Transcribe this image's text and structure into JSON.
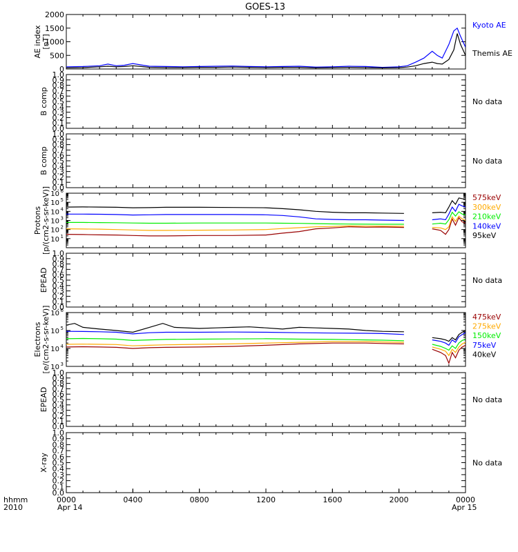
{
  "title": "GOES-13",
  "x_axis": {
    "corner_label_top": "hhmm",
    "corner_label_bottom": "2010",
    "ticks": [
      "0000",
      "0400",
      "0800",
      "1200",
      "1600",
      "2000",
      "0000"
    ],
    "tick_hours": [
      0,
      4,
      8,
      12,
      16,
      20,
      24
    ],
    "date_start": "Apr 14",
    "date_end": "Apr 15",
    "range_hours": [
      0,
      24
    ]
  },
  "colors": {
    "black": "#000000",
    "blue": "#0000ff",
    "green": "#00ee00",
    "orange": "#ffaa00",
    "darkred": "#990000",
    "axis": "#000000"
  },
  "chart_data": [
    {
      "id": "ae",
      "type": "line",
      "ylabel": [
        "AE index",
        "[nT]"
      ],
      "ylim": [
        0,
        2000
      ],
      "yticks": [
        0,
        500,
        1000,
        1500,
        2000
      ],
      "tick_labels": [
        "0",
        "500",
        "1000",
        "1500",
        "2000"
      ],
      "legend_placement": "right",
      "series": [
        {
          "name": "Kyoto AE",
          "color": "#0000ff",
          "x": [
            0,
            1,
            2,
            2.5,
            3,
            3.5,
            4,
            4.5,
            5,
            6,
            7,
            8,
            9,
            10,
            11,
            12,
            13,
            14,
            15,
            16,
            17,
            18,
            19,
            20,
            20.5,
            21,
            21.5,
            22,
            22.3,
            22.6,
            23,
            23.3,
            23.5,
            23.7,
            24
          ],
          "y": [
            80,
            90,
            120,
            180,
            120,
            140,
            200,
            150,
            100,
            90,
            80,
            90,
            100,
            110,
            90,
            80,
            90,
            100,
            70,
            80,
            100,
            90,
            60,
            80,
            120,
            250,
            400,
            650,
            500,
            400,
            900,
            1400,
            1500,
            1200,
            800
          ]
        },
        {
          "name": "Themis AE",
          "color": "#000000",
          "x": [
            0,
            1,
            2,
            2.5,
            3,
            3.5,
            4,
            4.5,
            5,
            6,
            7,
            8,
            9,
            10,
            11,
            12,
            13,
            14,
            15,
            16,
            17,
            18,
            19,
            20,
            20.5,
            21,
            21.5,
            22,
            22.3,
            22.6,
            23,
            23.3,
            23.5,
            23.7,
            24
          ],
          "y": [
            40,
            50,
            80,
            100,
            80,
            90,
            120,
            90,
            60,
            50,
            50,
            60,
            60,
            70,
            60,
            50,
            60,
            60,
            40,
            50,
            60,
            50,
            40,
            50,
            70,
            120,
            200,
            250,
            200,
            180,
            350,
            700,
            1300,
            900,
            500
          ]
        }
      ]
    },
    {
      "id": "b1",
      "type": "line",
      "ylabel": [
        "B comp"
      ],
      "ylim": [
        0,
        1
      ],
      "yticks": [
        0,
        0.1,
        0.2,
        0.3,
        0.4,
        0.5,
        0.6,
        0.7,
        0.8,
        0.9,
        1.0
      ],
      "tick_labels": [
        "0.0",
        "0.1",
        "0.2",
        "0.3",
        "0.4",
        "0.5",
        "0.6",
        "0.7",
        "0.8",
        "0.9",
        "1.0"
      ],
      "no_data": "No data",
      "series": []
    },
    {
      "id": "b2",
      "type": "line",
      "ylabel": [
        "B comp"
      ],
      "ylim": [
        0,
        1
      ],
      "yticks": [
        0,
        0.1,
        0.2,
        0.3,
        0.4,
        0.5,
        0.6,
        0.7,
        0.8,
        0.9,
        1.0
      ],
      "tick_labels": [
        "0.0",
        "0.1",
        "0.2",
        "0.3",
        "0.4",
        "0.5",
        "0.6",
        "0.7",
        "0.8",
        "0.9",
        "1.0"
      ],
      "no_data": "No data",
      "series": []
    },
    {
      "id": "protons",
      "type": "line",
      "ylabel": [
        "Protons",
        "[p/(cm2-s-sr-keV)]"
      ],
      "log_scale": true,
      "ylim": [
        1,
        1000000
      ],
      "yticks": [
        10,
        100,
        1000,
        10000,
        100000,
        1000000
      ],
      "tick_labels": [
        "10",
        "10",
        "10",
        "10",
        "10",
        "10"
      ],
      "tick_exponents": [
        "1",
        "2",
        "3",
        "4",
        "5",
        "6"
      ],
      "legend_placement": "right",
      "series": [
        {
          "name": "575keV",
          "color": "#990000",
          "x": [
            0,
            1,
            2,
            3,
            4,
            5,
            6,
            8,
            10,
            12,
            13,
            14,
            15,
            16,
            17,
            18,
            19,
            20.3,
            21,
            22,
            22.5,
            22.8,
            23,
            23.2,
            23.4,
            23.6,
            23.8,
            24
          ],
          "y": [
            30,
            28,
            26,
            25,
            22,
            20,
            20,
            22,
            22,
            25,
            40,
            60,
            120,
            150,
            200,
            180,
            190,
            170,
            150,
            120,
            80,
            30,
            100,
            1500,
            300,
            2000,
            700,
            500
          ]
        },
        {
          "name": "300keV",
          "color": "#ffaa00",
          "x": [
            0,
            1,
            2,
            3,
            4,
            5,
            6,
            8,
            10,
            12,
            13,
            14,
            15,
            16,
            17,
            18,
            19,
            20.3,
            21,
            22,
            22.5,
            22.8,
            23,
            23.2,
            23.4,
            23.6,
            23.8,
            24
          ],
          "y": [
            120,
            115,
            110,
            100,
            90,
            80,
            80,
            85,
            90,
            100,
            130,
            160,
            200,
            220,
            250,
            240,
            240,
            230,
            200,
            170,
            150,
            100,
            200,
            2500,
            800,
            3000,
            1500,
            1000
          ]
        },
        {
          "name": "210keV",
          "color": "#00ee00",
          "x": [
            0,
            1,
            2,
            3,
            4,
            5,
            6,
            8,
            10,
            12,
            13,
            14,
            15,
            16,
            17,
            18,
            19,
            20.3,
            21,
            22,
            22.5,
            22.8,
            23,
            23.2,
            23.4,
            23.6,
            23.8,
            24
          ],
          "y": [
            600,
            600,
            580,
            560,
            520,
            500,
            500,
            520,
            520,
            520,
            500,
            480,
            450,
            420,
            400,
            390,
            380,
            380,
            380,
            400,
            500,
            400,
            1200,
            8000,
            3000,
            9000,
            5000,
            4000
          ]
        },
        {
          "name": "140keV",
          "color": "#0000ff",
          "x": [
            0,
            1,
            2,
            3,
            4,
            5,
            6,
            8,
            10,
            12,
            13,
            14,
            15,
            16,
            17,
            18,
            19,
            20.3,
            21,
            22,
            22.5,
            22.8,
            23,
            23.2,
            23.4,
            23.6,
            23.8,
            24
          ],
          "y": [
            5000,
            5000,
            4800,
            4500,
            4000,
            4200,
            4500,
            4500,
            4500,
            4200,
            3500,
            2500,
            1500,
            1300,
            1200,
            1200,
            1100,
            1000,
            1100,
            1200,
            1500,
            1200,
            5000,
            30000,
            10000,
            60000,
            40000,
            30000
          ]
        },
        {
          "name": "95keV",
          "color": "#000000",
          "x": [
            0,
            1,
            2,
            3,
            4,
            5,
            6,
            8,
            10,
            12,
            13,
            14,
            15,
            16,
            17,
            18,
            19,
            20.3,
            21,
            22,
            22.5,
            22.8,
            23,
            23.2,
            23.4,
            23.6,
            23.8,
            24
          ],
          "y": [
            30000,
            31000,
            30000,
            28000,
            25000,
            26000,
            28000,
            28000,
            27000,
            25000,
            20000,
            15000,
            10000,
            8000,
            7000,
            7000,
            6500,
            6000,
            6500,
            7000,
            8000,
            7000,
            30000,
            150000,
            60000,
            300000,
            250000,
            200000
          ]
        }
      ],
      "gaps": [
        [
          20.7,
          21.1
        ]
      ]
    },
    {
      "id": "epead1",
      "type": "line",
      "ylabel": [
        "EPEAD"
      ],
      "ylim": [
        0,
        1
      ],
      "yticks": [
        0,
        0.1,
        0.2,
        0.3,
        0.4,
        0.5,
        0.6,
        0.7,
        0.8,
        0.9,
        1.0
      ],
      "tick_labels": [
        "0.0",
        "0.1",
        "0.2",
        "0.3",
        "0.4",
        "0.5",
        "0.6",
        "0.7",
        "0.8",
        "0.9",
        "1.0"
      ],
      "no_data": "No data",
      "series": []
    },
    {
      "id": "electrons",
      "type": "line",
      "ylabel": [
        "Electrons",
        "[e/(cm2-s-sr-keV)]"
      ],
      "log_scale": true,
      "ylim": [
        1000,
        1000000
      ],
      "yticks": [
        1000,
        10000,
        100000,
        1000000
      ],
      "tick_labels": [
        "10",
        "10",
        "10",
        "10"
      ],
      "tick_exponents": [
        "3",
        "4",
        "5",
        "6"
      ],
      "legend_placement": "right",
      "series": [
        {
          "name": "475keV",
          "color": "#990000",
          "x": [
            0,
            1,
            2,
            3,
            4,
            5,
            6,
            8,
            10,
            12,
            14,
            16,
            18,
            19,
            20.3,
            21,
            22,
            22.5,
            22.8,
            23,
            23.2,
            23.4,
            23.6,
            23.8,
            24
          ],
          "y": [
            12000,
            12500,
            12000,
            11500,
            10000,
            11000,
            11500,
            12000,
            13000,
            15000,
            18000,
            20000,
            20000,
            19000,
            18000,
            14000,
            9000,
            6000,
            4000,
            1500,
            6000,
            3000,
            8000,
            12000,
            15000
          ]
        },
        {
          "name": "275keV",
          "color": "#ffaa00",
          "x": [
            0,
            1,
            2,
            3,
            4,
            5,
            6,
            8,
            10,
            12,
            14,
            16,
            18,
            19,
            20.3,
            21,
            22,
            22.5,
            22.8,
            23,
            23.2,
            23.4,
            23.6,
            23.8,
            24
          ],
          "y": [
            17000,
            17500,
            17000,
            16500,
            14000,
            15000,
            16000,
            17000,
            18000,
            20000,
            22000,
            24000,
            24000,
            23000,
            22000,
            17000,
            12000,
            9000,
            7000,
            4000,
            9000,
            6000,
            12000,
            18000,
            22000
          ]
        },
        {
          "name": "150keV",
          "color": "#00ee00",
          "x": [
            0,
            1,
            2,
            3,
            4,
            5,
            6,
            8,
            10,
            12,
            14,
            16,
            18,
            19,
            20.3,
            21,
            22,
            22.5,
            22.8,
            23,
            23.2,
            23.4,
            23.6,
            23.8,
            24
          ],
          "y": [
            35000,
            36000,
            35000,
            33000,
            28000,
            30000,
            32000,
            33000,
            34000,
            35000,
            33000,
            32000,
            30000,
            29000,
            27000,
            22000,
            17000,
            13000,
            10000,
            8000,
            14000,
            10000,
            20000,
            28000,
            33000
          ]
        },
        {
          "name": "75keV",
          "color": "#0000ff",
          "x": [
            0,
            1,
            2,
            3,
            4,
            5,
            6,
            8,
            10,
            12,
            14,
            16,
            18,
            19,
            20.3,
            21,
            22,
            22.5,
            22.8,
            23,
            23.2,
            23.4,
            23.6,
            23.8,
            24
          ],
          "y": [
            90000,
            88000,
            85000,
            80000,
            65000,
            75000,
            80000,
            80000,
            82000,
            80000,
            75000,
            72000,
            70000,
            68000,
            60000,
            45000,
            30000,
            25000,
            20000,
            15000,
            30000,
            22000,
            45000,
            60000,
            75000
          ]
        },
        {
          "name": "40keV",
          "color": "#000000",
          "x": [
            0,
            0.5,
            1,
            2,
            3,
            4,
            5,
            5.8,
            6.5,
            8,
            9,
            10,
            11,
            12,
            13,
            14,
            15,
            16,
            17,
            18,
            19,
            20.3,
            21,
            22,
            22.5,
            22.8,
            23,
            23.2,
            23.4,
            23.6,
            23.8,
            24
          ],
          "y": [
            200000,
            250000,
            150000,
            120000,
            100000,
            80000,
            150000,
            250000,
            150000,
            130000,
            140000,
            150000,
            160000,
            140000,
            120000,
            150000,
            140000,
            130000,
            120000,
            100000,
            90000,
            85000,
            55000,
            40000,
            35000,
            30000,
            25000,
            40000,
            30000,
            60000,
            80000,
            100000
          ]
        }
      ],
      "gaps": [
        [
          20.7,
          21.1
        ]
      ]
    },
    {
      "id": "epead2",
      "type": "line",
      "ylabel": [
        "EPEAD"
      ],
      "ylim": [
        0,
        1
      ],
      "yticks": [
        0,
        0.1,
        0.2,
        0.3,
        0.4,
        0.5,
        0.6,
        0.7,
        0.8,
        0.9,
        1.0
      ],
      "tick_labels": [
        "0.0",
        "0.1",
        "0.2",
        "0.3",
        "0.4",
        "0.5",
        "0.6",
        "0.7",
        "0.8",
        "0.9",
        "1.0"
      ],
      "no_data": "No data",
      "series": []
    },
    {
      "id": "xray",
      "type": "line",
      "ylabel": [
        "X-ray"
      ],
      "ylim": [
        0,
        1
      ],
      "yticks": [
        0,
        0.1,
        0.2,
        0.3,
        0.4,
        0.5,
        0.6,
        0.7,
        0.8,
        0.9,
        1.0
      ],
      "tick_labels": [
        "0.0",
        "0.1",
        "0.2",
        "0.3",
        "0.4",
        "0.5",
        "0.6",
        "0.7",
        "0.8",
        "0.9",
        "1.0"
      ],
      "no_data": "No data",
      "series": []
    }
  ]
}
